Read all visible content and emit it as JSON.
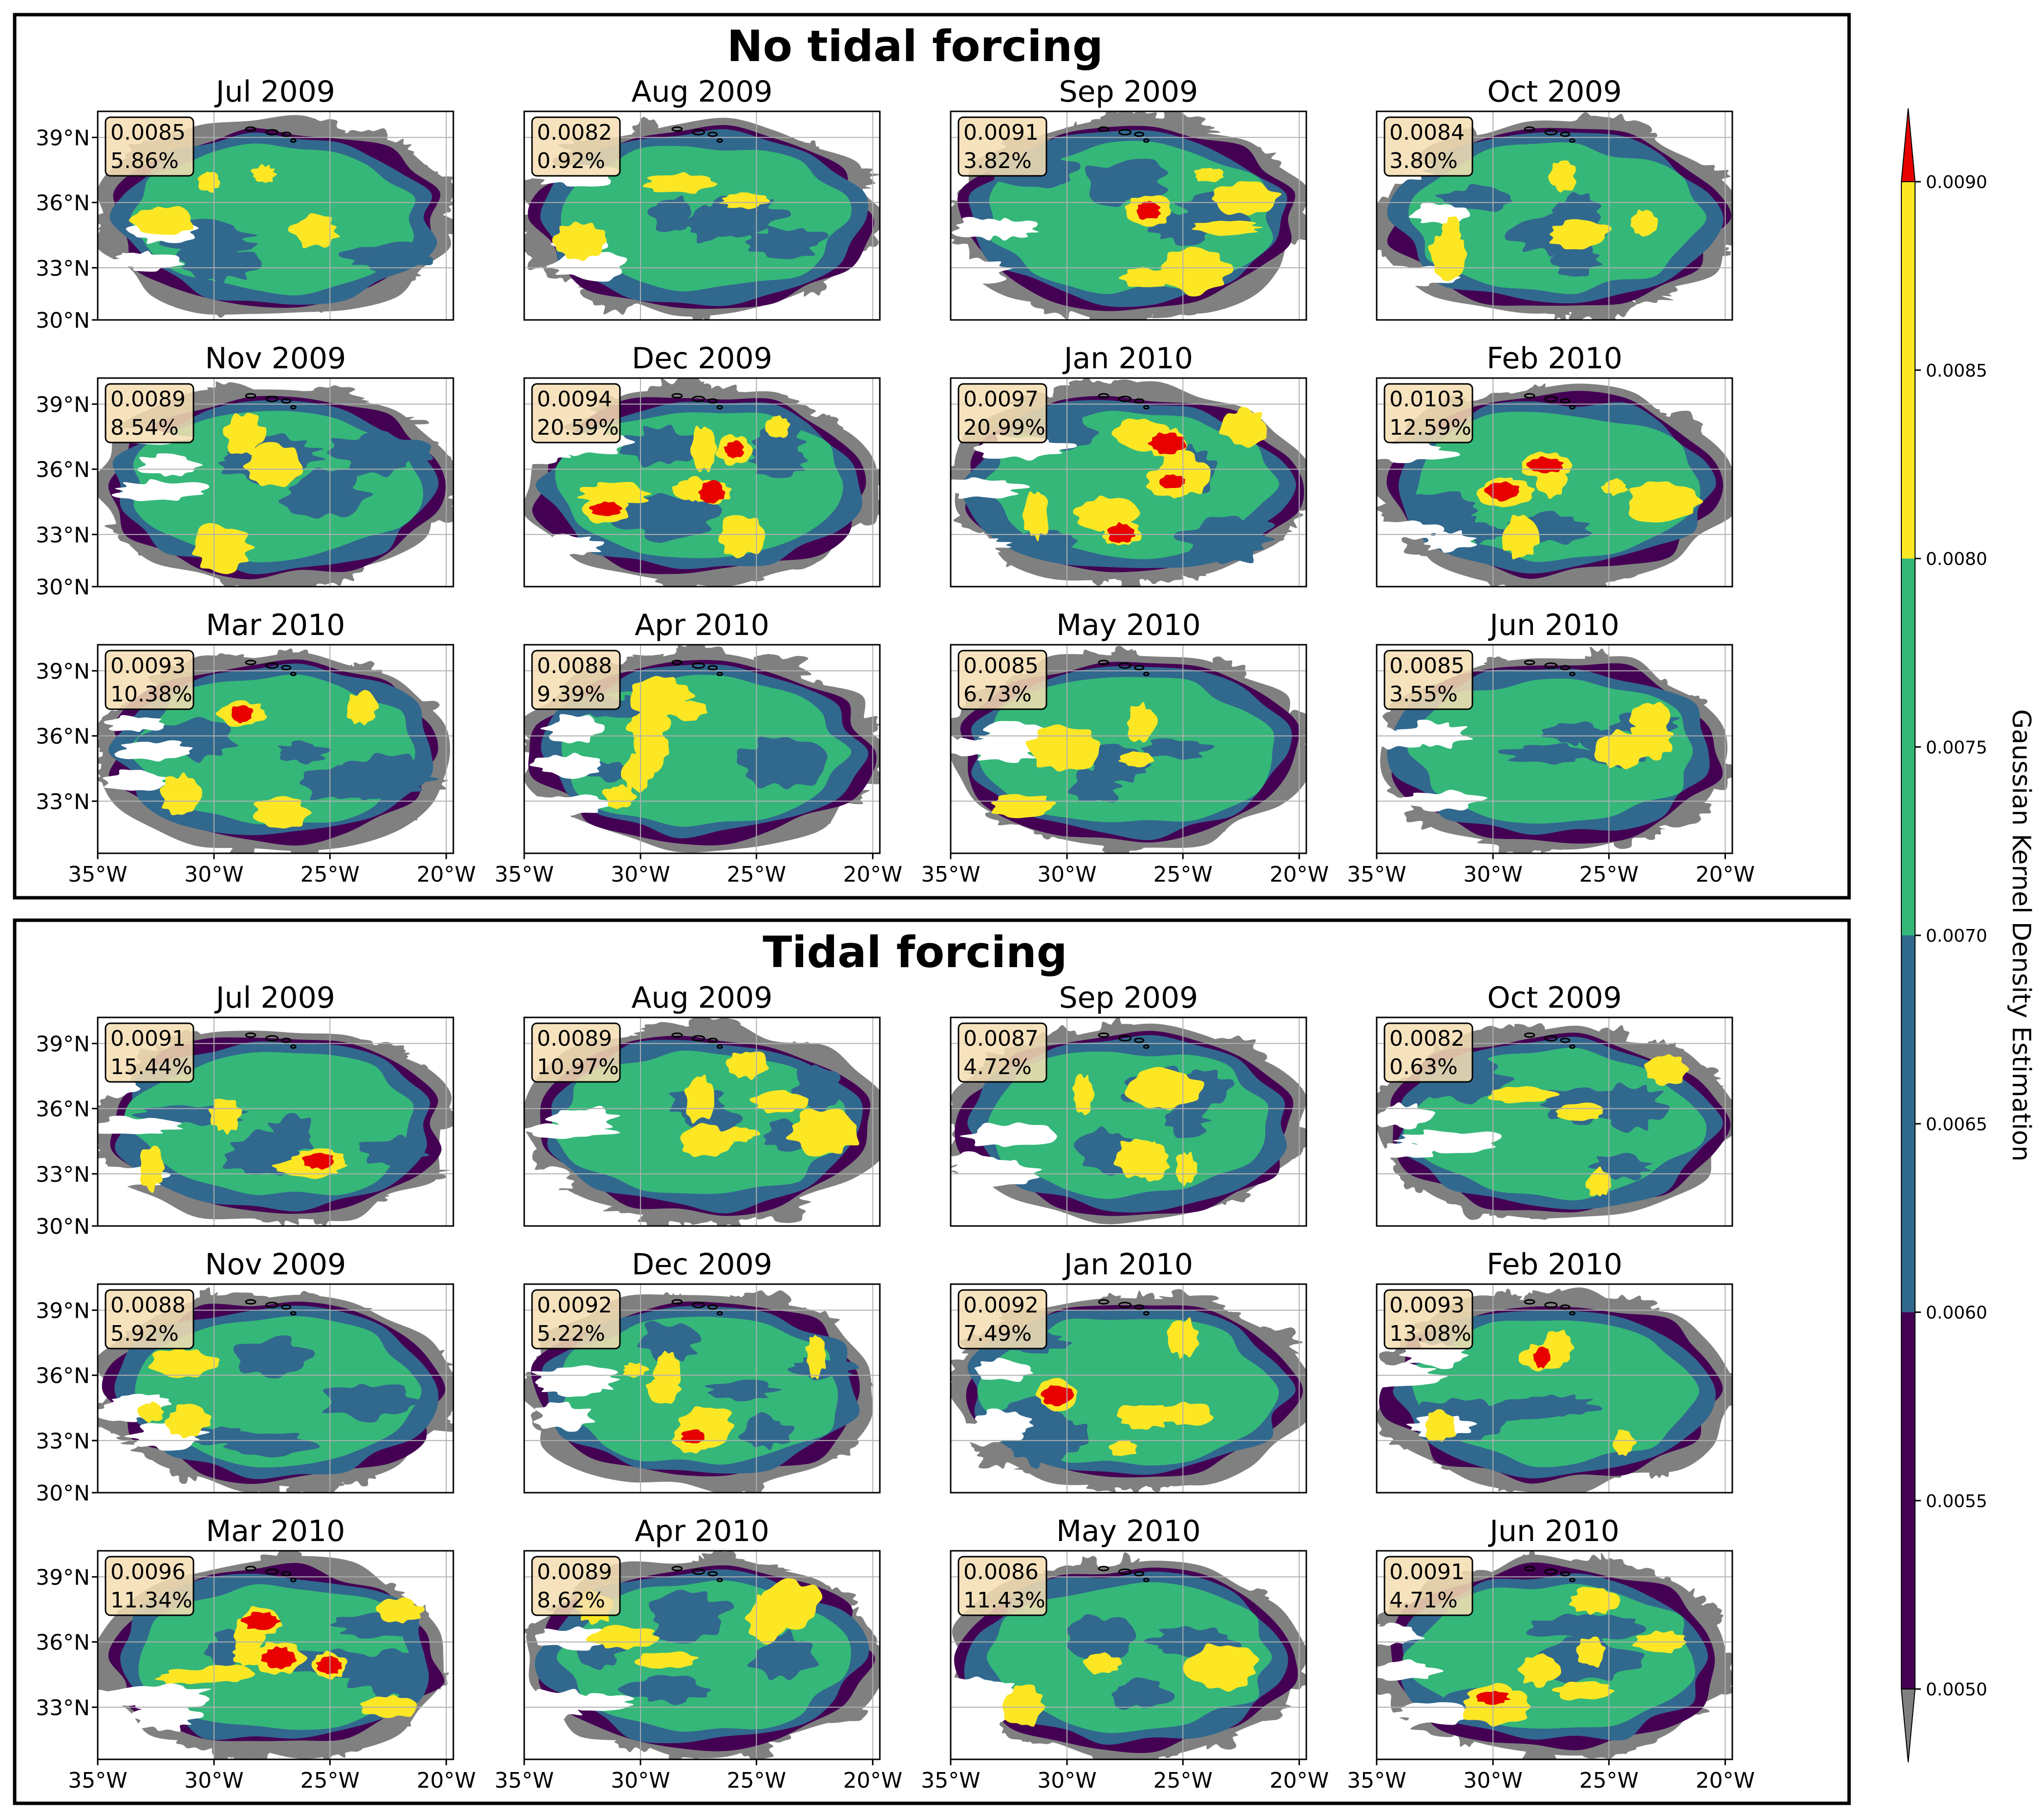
{
  "colors": {
    "under": "#808080",
    "over": "#e80000",
    "levels": [
      "#440154",
      "#31688e",
      "#35b779",
      "#fde725"
    ],
    "land": "#000000",
    "grid": "#b0b0b0",
    "stat_box": "#f5deb3"
  },
  "colorbar": {
    "label": "Gaussian Kernel Density Estimation",
    "ticks": [
      "0.0050",
      "0.0055",
      "0.0060",
      "0.0065",
      "0.0070",
      "0.0075",
      "0.0080",
      "0.0085",
      "0.0090"
    ],
    "boundaries": [
      0.005,
      0.006,
      0.007,
      0.008,
      0.009
    ],
    "extend": "both"
  },
  "axes": {
    "lon_ticks": [
      "35°W",
      "30°W",
      "25°W",
      "20°W"
    ],
    "lat_ticks": [
      "39°N",
      "36°N",
      "33°N",
      "30°N"
    ],
    "lat_ticks_bottom_row": [
      "39°N",
      "36°N",
      "33°N"
    ]
  },
  "chart_data": [
    {
      "type": "heatmap",
      "title": "No tidal forcing",
      "panels": [
        {
          "title": "Jul 2009",
          "max": "0.0085",
          "pct": "5.86%"
        },
        {
          "title": "Aug 2009",
          "max": "0.0082",
          "pct": "0.92%"
        },
        {
          "title": "Sep 2009",
          "max": "0.0091",
          "pct": "3.82%"
        },
        {
          "title": "Oct 2009",
          "max": "0.0084",
          "pct": "3.80%"
        },
        {
          "title": "Nov 2009",
          "max": "0.0089",
          "pct": "8.54%"
        },
        {
          "title": "Dec 2009",
          "max": "0.0094",
          "pct": "20.59%"
        },
        {
          "title": "Jan 2010",
          "max": "0.0097",
          "pct": "20.99%"
        },
        {
          "title": "Feb 2010",
          "max": "0.0103",
          "pct": "12.59%"
        },
        {
          "title": "Mar 2010",
          "max": "0.0093",
          "pct": "10.38%"
        },
        {
          "title": "Apr 2010",
          "max": "0.0088",
          "pct": "9.39%"
        },
        {
          "title": "May 2010",
          "max": "0.0085",
          "pct": "6.73%"
        },
        {
          "title": "Jun 2010",
          "max": "0.0085",
          "pct": "3.55%"
        }
      ]
    },
    {
      "type": "heatmap",
      "title": "Tidal forcing",
      "panels": [
        {
          "title": "Jul 2009",
          "max": "0.0091",
          "pct": "15.44%"
        },
        {
          "title": "Aug 2009",
          "max": "0.0089",
          "pct": "10.97%"
        },
        {
          "title": "Sep 2009",
          "max": "0.0087",
          "pct": "4.72%"
        },
        {
          "title": "Oct 2009",
          "max": "0.0082",
          "pct": "0.63%"
        },
        {
          "title": "Nov 2009",
          "max": "0.0088",
          "pct": "5.92%"
        },
        {
          "title": "Dec 2009",
          "max": "0.0092",
          "pct": "5.22%"
        },
        {
          "title": "Jan 2010",
          "max": "0.0092",
          "pct": "7.49%"
        },
        {
          "title": "Feb 2010",
          "max": "0.0093",
          "pct": "13.08%"
        },
        {
          "title": "Mar 2010",
          "max": "0.0096",
          "pct": "11.34%"
        },
        {
          "title": "Apr 2010",
          "max": "0.0089",
          "pct": "8.62%"
        },
        {
          "title": "May 2010",
          "max": "0.0086",
          "pct": "11.43%"
        },
        {
          "title": "Jun 2010",
          "max": "0.0091",
          "pct": "4.71%"
        }
      ]
    }
  ]
}
